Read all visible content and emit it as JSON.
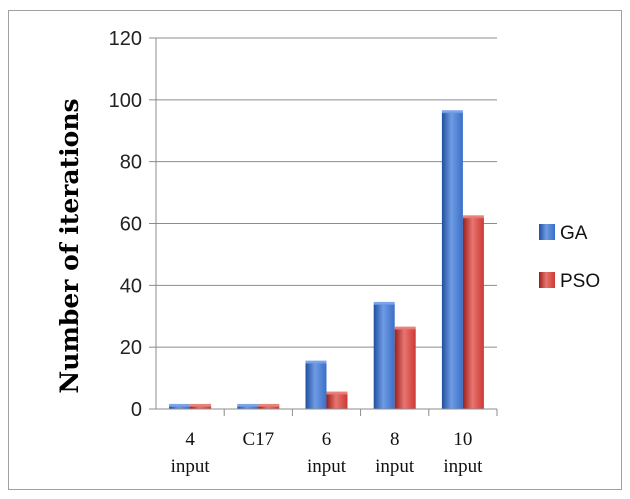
{
  "chart_data": {
    "type": "bar",
    "categories": [
      [
        "4",
        "input"
      ],
      [
        "C17"
      ],
      [
        "6",
        "input"
      ],
      [
        "8",
        "input"
      ],
      [
        "10",
        "input"
      ]
    ],
    "series": [
      {
        "name": "GA",
        "values": [
          1,
          1,
          15,
          34,
          96
        ],
        "color": "#3a6fc8",
        "color_dark": "#1f4f9e",
        "color_light": "#6f9be4"
      },
      {
        "name": "PSO",
        "values": [
          1,
          1,
          5,
          26,
          62
        ],
        "color": "#cc3a34",
        "color_dark": "#9a1f1b",
        "color_light": "#e87570"
      }
    ],
    "title": "",
    "xlabel": "",
    "ylabel": "Number of iterations",
    "ylim": [
      0,
      120
    ],
    "yticks": [
      0,
      20,
      40,
      60,
      80,
      100,
      120
    ],
    "grid": true,
    "legend": "right"
  }
}
